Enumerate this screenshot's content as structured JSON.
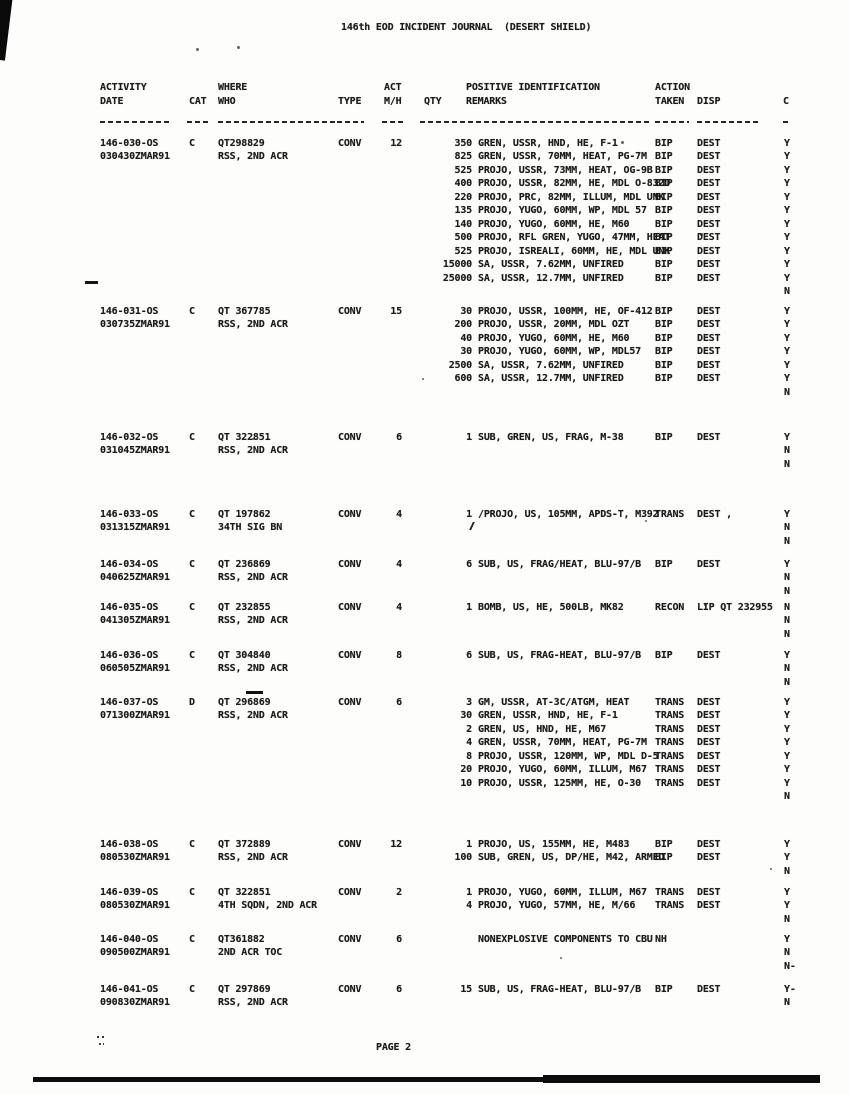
{
  "title": "146th EOD INCIDENT JOURNAL  (DESERT SHIELD)",
  "footer": {
    "page_label": "PAGE 2"
  },
  "table": {
    "headers": {
      "activity_line1": "ACTIVITY",
      "activity_line2": "DATE",
      "cat": "CAT",
      "where_line1": "WHERE",
      "where_line2": "WHO",
      "type": "TYPE",
      "act_line1": "ACT",
      "act_line2": "M/H",
      "qty": "QTY",
      "posid_line1": "POSITIVE IDENTIFICATION",
      "posid_line2": "REMARKS",
      "action_line1": "ACTION",
      "action_line2": "TAKEN",
      "disp": "DISP",
      "c": "C"
    },
    "entries": [
      {
        "activity": "146-030-OS",
        "date": "030430ZMAR91",
        "cat": "C",
        "where": "QT298829",
        "who": "RSS, 2ND ACR",
        "type": "CONV",
        "mh": "12",
        "lines": [
          {
            "qty": "350",
            "remark": "GREN, USSR, HND, HE, F-1",
            "action": "BIP",
            "disp": "DEST",
            "c": "Y"
          },
          {
            "qty": "825",
            "remark": "GREN, USSR, 70MM, HEAT, PG-7M",
            "action": "BIP",
            "disp": "DEST",
            "c": "Y"
          },
          {
            "qty": "525",
            "remark": "PROJO, USSR, 73MM, HEAT, OG-9B",
            "action": "BIP",
            "disp": "DEST",
            "c": "Y"
          },
          {
            "qty": "400",
            "remark": "PROJO, USSR, 82MM, HE, MDL O-832D",
            "action": "BIP",
            "disp": "DEST",
            "c": "Y"
          },
          {
            "qty": "220",
            "remark": "PROJO, PRC, 82MM, ILLUM, MDL UNK",
            "action": "BIP",
            "disp": "DEST",
            "c": "Y"
          },
          {
            "qty": "135",
            "remark": "PROJO, YUGO, 60MM, WP, MDL 57",
            "action": "BIP",
            "disp": "DEST",
            "c": "Y"
          },
          {
            "qty": "140",
            "remark": "PROJO, YUGO, 60MM, HE, M60",
            "action": "BIP",
            "disp": "DEST",
            "c": "Y"
          },
          {
            "qty": "500",
            "remark": "PROJO, RFL GREN, YUGO, 47MM, HEAT",
            "action": "BIP",
            "disp": "DEST",
            "c": "Y"
          },
          {
            "qty": "525",
            "remark": "PROJO, ISREALI, 60MM, HE, MDL UNK",
            "action": "BIP",
            "disp": "DEST",
            "c": "Y"
          },
          {
            "qty": "15000",
            "remark": "SA, USSR, 7.62MM, UNFIRED",
            "action": "BIP",
            "disp": "DEST",
            "c": "Y"
          },
          {
            "qty": "25000",
            "remark": "SA, USSR, 12.7MM, UNFIRED",
            "action": "BIP",
            "disp": "DEST",
            "c": "Y"
          },
          {
            "qty": "",
            "remark": "",
            "action": "",
            "disp": "",
            "c": "N"
          }
        ]
      },
      {
        "activity": "146-031-OS",
        "date": "030735ZMAR91",
        "cat": "C",
        "where": "QT 367785",
        "who": "RSS, 2ND ACR",
        "type": "CONV",
        "mh": "15",
        "lines": [
          {
            "qty": "30",
            "remark": "PROJO, USSR, 100MM, HE, OF-412",
            "action": "BIP",
            "disp": "DEST",
            "c": "Y"
          },
          {
            "qty": "200",
            "remark": "PROJO, USSR, 20MM, MDL OZT",
            "action": "BIP",
            "disp": "DEST",
            "c": "Y"
          },
          {
            "qty": "40",
            "remark": "PROJO, YUGO, 60MM, HE, M60",
            "action": "BIP",
            "disp": "DEST",
            "c": "Y"
          },
          {
            "qty": "30",
            "remark": "PROJO, YUGO, 60MM, WP, MDL57",
            "action": "BIP",
            "disp": "DEST",
            "c": "Y"
          },
          {
            "qty": "2500",
            "remark": "SA, USSR, 7.62MM, UNFIRED",
            "action": "BIP",
            "disp": "DEST",
            "c": "Y"
          },
          {
            "qty": "600",
            "remark": "SA, USSR, 12.7MM, UNFIRED",
            "action": "BIP",
            "disp": "DEST",
            "c": "Y"
          },
          {
            "qty": "",
            "remark": "",
            "action": "",
            "disp": "",
            "c": "N"
          }
        ]
      },
      {
        "activity": "146-032-OS",
        "date": "031045ZMAR91",
        "cat": "C",
        "where": "QT 322851",
        "who": "RSS, 2ND ACR",
        "type": "CONV",
        "mh": "6",
        "lines": [
          {
            "qty": "1",
            "remark": "SUB, GREN, US, FRAG, M-38",
            "action": "BIP",
            "disp": "DEST",
            "c": "Y"
          },
          {
            "qty": "",
            "remark": "",
            "action": "",
            "disp": "",
            "c": "N"
          },
          {
            "qty": "",
            "remark": "",
            "action": "",
            "disp": "",
            "c": "N"
          }
        ]
      },
      {
        "activity": "146-033-OS",
        "date": "031315ZMAR91",
        "cat": "C",
        "where": "QT 197862",
        "who": "34TH SIG BN",
        "type": "CONV",
        "mh": "4",
        "lines": [
          {
            "qty": "1",
            "remark": "/PROJO, US, 105MM, APDS-T, M392",
            "action": "TRANS",
            "disp": "DEST ,",
            "c": "Y"
          },
          {
            "qty": "",
            "remark": "",
            "action": "",
            "disp": "",
            "c": "N"
          },
          {
            "qty": "",
            "remark": "",
            "action": "",
            "disp": "",
            "c": "N"
          }
        ]
      },
      {
        "activity": "146-034-OS",
        "date": "040625ZMAR91",
        "cat": "C",
        "where": "QT 236869",
        "who": "RSS, 2ND ACR",
        "type": "CONV",
        "mh": "4",
        "lines": [
          {
            "qty": "6",
            "remark": "SUB, US, FRAG/HEAT, BLU-97/B",
            "action": "BIP",
            "disp": "DEST",
            "c": "Y"
          },
          {
            "qty": "",
            "remark": "",
            "action": "",
            "disp": "",
            "c": "N"
          },
          {
            "qty": "",
            "remark": "",
            "action": "",
            "disp": "",
            "c": "N"
          }
        ]
      },
      {
        "activity": "146-035-OS",
        "date": "041305ZMAR91",
        "cat": "C",
        "where": "QT 232855",
        "who": "RSS, 2ND ACR",
        "type": "CONV",
        "mh": "4",
        "lines": [
          {
            "qty": "1",
            "remark": "BOMB, US, HE, 500LB, MK82",
            "action": "RECON",
            "disp": "LIP QT 232955",
            "c": "N"
          },
          {
            "qty": "",
            "remark": "",
            "action": "",
            "disp": "",
            "c": "N"
          },
          {
            "qty": "",
            "remark": "",
            "action": "",
            "disp": "",
            "c": "N"
          }
        ]
      },
      {
        "activity": "146-036-OS",
        "date": "060505ZMAR91",
        "cat": "C",
        "where": "QT 304840",
        "who": "RSS, 2ND ACR",
        "type": "CONV",
        "mh": "8",
        "lines": [
          {
            "qty": "6",
            "remark": "SUB, US, FRAG-HEAT, BLU-97/B",
            "action": "BIP",
            "disp": "DEST",
            "c": "Y"
          },
          {
            "qty": "",
            "remark": "",
            "action": "",
            "disp": "",
            "c": "N"
          },
          {
            "qty": "",
            "remark": "",
            "action": "",
            "disp": "",
            "c": "N"
          }
        ]
      },
      {
        "activity": "146-037-OS",
        "date": "071300ZMAR91",
        "cat": "D",
        "where": "QT 296869",
        "who": "RSS, 2ND ACR",
        "type": "CONV",
        "mh": "6",
        "lines": [
          {
            "qty": "3",
            "remark": "GM, USSR, AT-3C/ATGM, HEAT",
            "action": "TRANS",
            "disp": "DEST",
            "c": "Y"
          },
          {
            "qty": "30",
            "remark": "GREN, USSR, HND, HE, F-1",
            "action": "TRANS",
            "disp": "DEST",
            "c": "Y"
          },
          {
            "qty": "2",
            "remark": "GREN, US, HND, HE, M67",
            "action": "TRANS",
            "disp": "DEST",
            "c": "Y"
          },
          {
            "qty": "4",
            "remark": "GREN, USSR, 70MM, HEAT, PG-7M",
            "action": "TRANS",
            "disp": "DEST",
            "c": "Y"
          },
          {
            "qty": "8",
            "remark": "PROJO, USSR, 120MM, WP, MDL D-5",
            "action": "TRANS",
            "disp": "DEST",
            "c": "Y"
          },
          {
            "qty": "20",
            "remark": "PROJO, YUGO, 60MM, ILLUM, M67",
            "action": "TRANS",
            "disp": "DEST",
            "c": "Y"
          },
          {
            "qty": "10",
            "remark": "PROJO, USSR, 125MM, HE, O-30",
            "action": "TRANS",
            "disp": "DEST",
            "c": "Y"
          },
          {
            "qty": "",
            "remark": "",
            "action": "",
            "disp": "",
            "c": "N"
          }
        ]
      },
      {
        "activity": "146-038-OS",
        "date": "080530ZMAR91",
        "cat": "C",
        "where": "QT 372889",
        "who": "RSS, 2ND ACR",
        "type": "CONV",
        "mh": "12",
        "lines": [
          {
            "qty": "1",
            "remark": "PROJO, US, 155MM, HE, M483",
            "action": "BIP",
            "disp": "DEST",
            "c": "Y"
          },
          {
            "qty": "100",
            "remark": "SUB, GREN, US, DP/HE, M42, ARMED",
            "action": "BIP",
            "disp": "DEST",
            "c": "Y"
          },
          {
            "qty": "",
            "remark": "",
            "action": "",
            "disp": "",
            "c": "N"
          }
        ]
      },
      {
        "activity": "146-039-OS",
        "date": "080530ZMAR91",
        "cat": "C",
        "where": "QT 322851",
        "who": "4TH SQDN, 2ND ACR",
        "type": "CONV",
        "mh": "2",
        "lines": [
          {
            "qty": "1",
            "remark": "PROJO, YUGO, 60MM, ILLUM, M67",
            "action": "TRANS",
            "disp": "DEST",
            "c": "Y"
          },
          {
            "qty": "4",
            "remark": "PROJO, YUGO, 57MM, HE, M/66",
            "action": "TRANS",
            "disp": "DEST",
            "c": "Y"
          },
          {
            "qty": "",
            "remark": "",
            "action": "",
            "disp": "",
            "c": "N"
          }
        ]
      },
      {
        "activity": "146-040-OS",
        "date": "090500ZMAR91",
        "cat": "C",
        "where": "QT361882",
        "who": "2ND ACR TOC",
        "type": "CONV",
        "mh": "6",
        "lines": [
          {
            "qty": "",
            "remark": "NONEXPLOSIVE COMPONENTS TO CBU",
            "action": "NH",
            "disp": "",
            "c": "Y"
          },
          {
            "qty": "",
            "remark": "",
            "action": "",
            "disp": "",
            "c": "N"
          },
          {
            "qty": "",
            "remark": "",
            "action": "",
            "disp": "",
            "c": "N-"
          }
        ]
      },
      {
        "activity": "146-041-OS",
        "date": "090830ZMAR91",
        "cat": "C",
        "where": "QT 297869",
        "who": "RSS, 2ND ACR",
        "type": "CONV",
        "mh": "6",
        "lines": [
          {
            "qty": "15",
            "remark": "SUB, US, FRAG-HEAT, BLU-97/B",
            "action": "BIP",
            "disp": "DEST",
            "c": "Y-"
          },
          {
            "qty": "",
            "remark": "",
            "action": "",
            "disp": "",
            "c": "N"
          }
        ]
      }
    ]
  }
}
